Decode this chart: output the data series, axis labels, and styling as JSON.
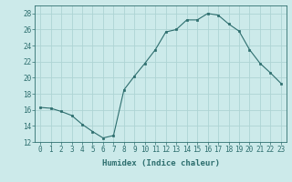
{
  "x": [
    0,
    1,
    2,
    3,
    4,
    5,
    6,
    7,
    8,
    9,
    10,
    11,
    12,
    13,
    14,
    15,
    16,
    17,
    18,
    19,
    20,
    21,
    22,
    23
  ],
  "y": [
    16.3,
    16.2,
    15.8,
    15.3,
    14.2,
    13.3,
    12.5,
    12.8,
    18.5,
    20.2,
    21.8,
    23.5,
    25.7,
    26.0,
    27.2,
    27.2,
    28.0,
    27.8,
    26.7,
    25.8,
    23.5,
    21.8,
    20.6,
    19.3
  ],
  "line_color": "#2d6e6e",
  "marker": "s",
  "marker_size": 2,
  "bg_color": "#cceaea",
  "grid_color": "#aed4d4",
  "xlabel": "Humidex (Indice chaleur)",
  "ylim": [
    12,
    29
  ],
  "yticks": [
    12,
    14,
    16,
    18,
    20,
    22,
    24,
    26,
    28
  ],
  "xticks": [
    0,
    1,
    2,
    3,
    4,
    5,
    6,
    7,
    8,
    9,
    10,
    11,
    12,
    13,
    14,
    15,
    16,
    17,
    18,
    19,
    20,
    21,
    22,
    23
  ],
  "tick_color": "#2d6e6e",
  "label_fontsize": 6.5,
  "tick_fontsize": 5.5
}
